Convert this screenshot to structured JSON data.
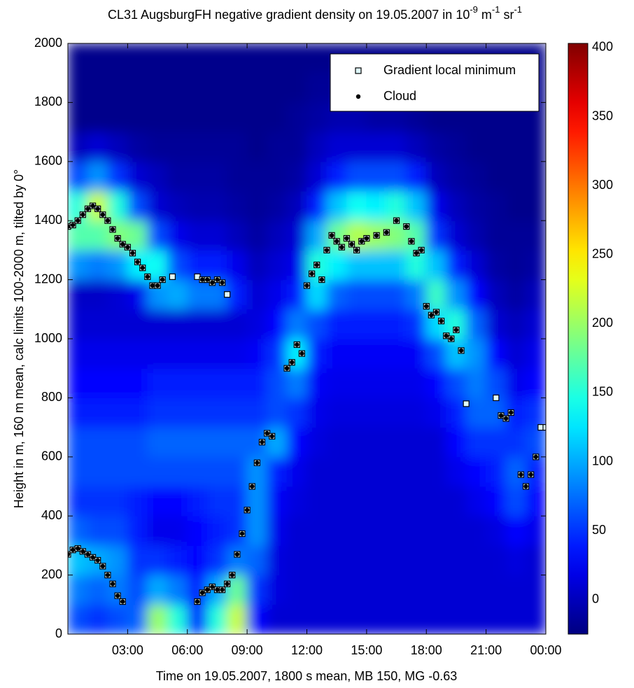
{
  "chart_data": {
    "type": "heatmap",
    "title_parts": [
      "CL31 AugsburgFH negative gradient density on 19.05.2007 in 10",
      "-9",
      " m",
      "-1",
      " sr",
      "-1"
    ],
    "xlabel": "Time on 19.05.2007, 1800 s mean, MB 150, MG -0.63",
    "ylabel": "Height in m, 160 m mean, calc limits 100-2000 m, tilted by 0°",
    "xlim": [
      0,
      24
    ],
    "ylim": [
      0,
      2000
    ],
    "xticks": [
      {
        "value": 3,
        "label": "03:00"
      },
      {
        "value": 6,
        "label": "06:00"
      },
      {
        "value": 9,
        "label": "09:00"
      },
      {
        "value": 12,
        "label": "12:00"
      },
      {
        "value": 15,
        "label": "15:00"
      },
      {
        "value": 18,
        "label": "18:00"
      },
      {
        "value": 21,
        "label": "21:00"
      },
      {
        "value": 24,
        "label": "00:00"
      }
    ],
    "yticks": [
      0,
      200,
      400,
      600,
      800,
      1000,
      1200,
      1400,
      1600,
      1800,
      2000
    ],
    "colormap": "jet",
    "clim": [
      -25,
      403
    ],
    "cticks": [
      0,
      50,
      100,
      150,
      200,
      250,
      300,
      350,
      400
    ],
    "legend": "upper right",
    "xbins": [
      0,
      1,
      2,
      3,
      4,
      5,
      6,
      7,
      8,
      9,
      10,
      11,
      12,
      13,
      14,
      15,
      16,
      17,
      18,
      19,
      20,
      21,
      22,
      23,
      24
    ],
    "ybins": [
      0,
      100,
      200,
      300,
      400,
      500,
      600,
      700,
      800,
      900,
      1000,
      1100,
      1200,
      1300,
      1400,
      1500,
      1600,
      1700,
      1800,
      1900,
      2000
    ],
    "z": [
      [
        60,
        50,
        60,
        70,
        200,
        150,
        40,
        150,
        220,
        30,
        10,
        10,
        10,
        10,
        10,
        10,
        10,
        10,
        10,
        10,
        10,
        10,
        10,
        10
      ],
      [
        80,
        70,
        80,
        60,
        100,
        80,
        40,
        100,
        180,
        50,
        15,
        10,
        10,
        10,
        10,
        10,
        10,
        10,
        10,
        10,
        10,
        10,
        10,
        10
      ],
      [
        110,
        100,
        90,
        50,
        50,
        40,
        30,
        50,
        80,
        70,
        15,
        10,
        10,
        10,
        10,
        10,
        10,
        10,
        10,
        10,
        10,
        10,
        15,
        10
      ],
      [
        70,
        60,
        60,
        40,
        20,
        20,
        30,
        40,
        50,
        90,
        20,
        10,
        10,
        10,
        10,
        10,
        10,
        10,
        10,
        10,
        10,
        15,
        30,
        20
      ],
      [
        50,
        50,
        50,
        40,
        30,
        30,
        40,
        50,
        50,
        90,
        25,
        15,
        10,
        10,
        10,
        10,
        10,
        10,
        10,
        10,
        20,
        30,
        60,
        30
      ],
      [
        60,
        60,
        60,
        60,
        60,
        60,
        60,
        60,
        60,
        90,
        40,
        20,
        10,
        10,
        10,
        10,
        10,
        10,
        10,
        20,
        30,
        40,
        70,
        40
      ],
      [
        60,
        60,
        60,
        60,
        70,
        70,
        70,
        70,
        70,
        70,
        100,
        30,
        15,
        10,
        10,
        10,
        10,
        10,
        10,
        30,
        50,
        50,
        50,
        60
      ],
      [
        40,
        40,
        40,
        40,
        50,
        50,
        50,
        50,
        50,
        50,
        60,
        50,
        20,
        15,
        15,
        15,
        15,
        15,
        20,
        40,
        70,
        70,
        40,
        50
      ],
      [
        30,
        30,
        30,
        30,
        40,
        40,
        40,
        40,
        40,
        40,
        60,
        80,
        25,
        20,
        20,
        20,
        20,
        20,
        30,
        60,
        80,
        60,
        20,
        30
      ],
      [
        20,
        20,
        20,
        20,
        20,
        20,
        20,
        20,
        20,
        25,
        50,
        130,
        40,
        25,
        25,
        25,
        25,
        25,
        60,
        110,
        90,
        30,
        10,
        20
      ],
      [
        10,
        10,
        10,
        10,
        10,
        10,
        10,
        10,
        10,
        15,
        30,
        80,
        60,
        40,
        40,
        40,
        40,
        50,
        120,
        150,
        70,
        10,
        0,
        10
      ],
      [
        5,
        5,
        10,
        20,
        90,
        100,
        80,
        80,
        40,
        10,
        20,
        40,
        120,
        70,
        60,
        60,
        60,
        80,
        160,
        90,
        30,
        0,
        -10,
        0
      ],
      [
        90,
        80,
        90,
        130,
        140,
        60,
        40,
        40,
        20,
        0,
        10,
        20,
        150,
        130,
        110,
        110,
        110,
        150,
        110,
        40,
        10,
        -10,
        -15,
        -10
      ],
      [
        170,
        170,
        190,
        180,
        60,
        20,
        10,
        10,
        0,
        -10,
        0,
        10,
        100,
        180,
        210,
        200,
        190,
        170,
        50,
        10,
        -5,
        -15,
        -15,
        -15
      ],
      [
        150,
        220,
        150,
        60,
        10,
        0,
        -5,
        -5,
        -10,
        -15,
        -10,
        0,
        40,
        110,
        140,
        130,
        150,
        110,
        20,
        0,
        -10,
        -15,
        -20,
        -20
      ],
      [
        60,
        90,
        50,
        10,
        0,
        -10,
        -10,
        -10,
        -15,
        -15,
        -15,
        -10,
        10,
        40,
        60,
        60,
        60,
        40,
        0,
        -10,
        -15,
        -20,
        -20,
        -20
      ],
      [
        0,
        10,
        0,
        -10,
        -15,
        -15,
        -15,
        -15,
        -15,
        -20,
        -15,
        -15,
        0,
        10,
        10,
        10,
        10,
        0,
        -10,
        -15,
        -20,
        -20,
        -20,
        -20
      ],
      [
        -20,
        -20,
        -20,
        -20,
        -20,
        -20,
        -20,
        -20,
        -20,
        -20,
        -20,
        -15,
        -10,
        -5,
        -5,
        -10,
        -10,
        -15,
        -20,
        -20,
        -20,
        -20,
        -20,
        -20
      ],
      [
        -20,
        -20,
        -20,
        -20,
        -20,
        -20,
        -20,
        -20,
        -20,
        -20,
        -20,
        -20,
        -15,
        -15,
        -15,
        -15,
        -15,
        -20,
        -20,
        -20,
        -20,
        -20,
        -20,
        -20
      ],
      [
        -20,
        -20,
        -20,
        -20,
        -20,
        -20,
        -20,
        -20,
        -20,
        -20,
        -20,
        -20,
        -20,
        -20,
        -20,
        -20,
        -20,
        -20,
        -20,
        -20,
        -20,
        -20,
        -20,
        -20
      ]
    ],
    "series": [
      {
        "name": "Gradient local minimum",
        "color": "#dffcff",
        "marker": "square",
        "x": [
          0,
          0.25,
          0.5,
          0.75,
          1,
          1.25,
          1.5,
          1.75,
          2,
          2.25,
          2.5,
          2.75,
          3,
          3.25,
          3.5,
          3.75,
          4,
          4.25,
          4.5,
          4.75,
          5.25,
          6.5,
          6.75,
          7,
          7.25,
          7.5,
          7.75,
          8,
          0,
          0.25,
          0.5,
          0.75,
          1,
          1.25,
          1.5,
          1.75,
          2,
          2.25,
          2.5,
          2.75,
          6.5,
          6.75,
          7,
          7.25,
          7.5,
          7.75,
          8,
          8.25,
          8.5,
          8.75,
          9,
          9.25,
          9.5,
          9.75,
          10,
          10.25,
          11,
          11.25,
          11.5,
          11.75,
          12,
          12.25,
          12.5,
          12.75,
          13,
          13.25,
          13.5,
          13.75,
          14,
          14.25,
          14.5,
          14.75,
          15,
          15.5,
          16,
          16.5,
          17,
          17.25,
          17.5,
          17.75,
          18,
          18.25,
          18.5,
          18.75,
          19,
          19.25,
          19.5,
          19.75,
          20,
          21.5,
          21.75,
          22,
          22.25,
          22.75,
          23,
          23.25,
          23.5,
          23.75,
          24
        ],
        "y": [
          1380,
          1385,
          1400,
          1420,
          1440,
          1450,
          1440,
          1420,
          1400,
          1370,
          1340,
          1320,
          1310,
          1290,
          1260,
          1240,
          1210,
          1180,
          1180,
          1200,
          1210,
          1210,
          1200,
          1200,
          1190,
          1200,
          1190,
          1150,
          270,
          285,
          290,
          280,
          270,
          260,
          250,
          230,
          200,
          170,
          130,
          110,
          110,
          140,
          150,
          160,
          150,
          150,
          170,
          200,
          270,
          340,
          420,
          500,
          580,
          650,
          680,
          670,
          900,
          920,
          980,
          950,
          1180,
          1220,
          1250,
          1200,
          1300,
          1350,
          1330,
          1310,
          1340,
          1320,
          1300,
          1330,
          1340,
          1350,
          1360,
          1400,
          1380,
          1330,
          1290,
          1300,
          1110,
          1080,
          1090,
          1060,
          1010,
          1000,
          1030,
          960,
          780,
          800,
          740,
          730,
          750,
          540,
          500,
          540,
          600,
          700,
          700
        ]
      },
      {
        "name": "Cloud",
        "color": "#000000",
        "marker": "dot",
        "x": [
          0,
          0.25,
          0.5,
          0.75,
          1,
          1.25,
          1.5,
          1.75,
          2,
          2.25,
          2.5,
          2.75,
          3,
          3.25,
          3.5,
          3.75,
          4,
          4.25,
          4.5,
          4.75,
          6.75,
          7,
          7.25,
          7.5,
          7.75,
          0,
          0.25,
          0.5,
          0.75,
          1,
          1.25,
          1.5,
          1.75,
          2,
          2.25,
          2.5,
          2.75,
          6.5,
          6.75,
          7,
          7.25,
          7.5,
          7.75,
          8,
          8.25,
          8.5,
          8.75,
          9,
          9.25,
          9.5,
          9.75,
          10,
          10.25,
          11,
          11.25,
          11.5,
          11.75,
          12,
          12.25,
          12.5,
          12.75,
          13,
          13.25,
          13.5,
          13.75,
          14,
          14.25,
          14.5,
          14.75,
          15,
          15.5,
          16,
          16.5,
          17,
          17.25,
          17.5,
          17.75,
          18,
          18.25,
          18.5,
          18.75,
          19,
          19.25,
          19.5,
          19.75,
          21.75,
          22,
          22.25,
          22.75,
          23,
          23.25,
          23.5
        ],
        "y": [
          1380,
          1385,
          1400,
          1420,
          1440,
          1450,
          1440,
          1420,
          1400,
          1370,
          1340,
          1320,
          1310,
          1290,
          1260,
          1240,
          1210,
          1180,
          1180,
          1200,
          1200,
          1200,
          1190,
          1200,
          1190,
          270,
          285,
          290,
          280,
          270,
          260,
          250,
          230,
          200,
          170,
          130,
          110,
          110,
          140,
          150,
          160,
          150,
          150,
          170,
          200,
          270,
          340,
          420,
          500,
          580,
          650,
          680,
          670,
          900,
          920,
          980,
          950,
          1180,
          1220,
          1250,
          1200,
          1300,
          1350,
          1330,
          1310,
          1340,
          1320,
          1300,
          1330,
          1340,
          1350,
          1360,
          1400,
          1380,
          1330,
          1290,
          1300,
          1110,
          1080,
          1090,
          1060,
          1010,
          1000,
          1030,
          960,
          740,
          730,
          750,
          540,
          500,
          540,
          600
        ]
      }
    ]
  }
}
